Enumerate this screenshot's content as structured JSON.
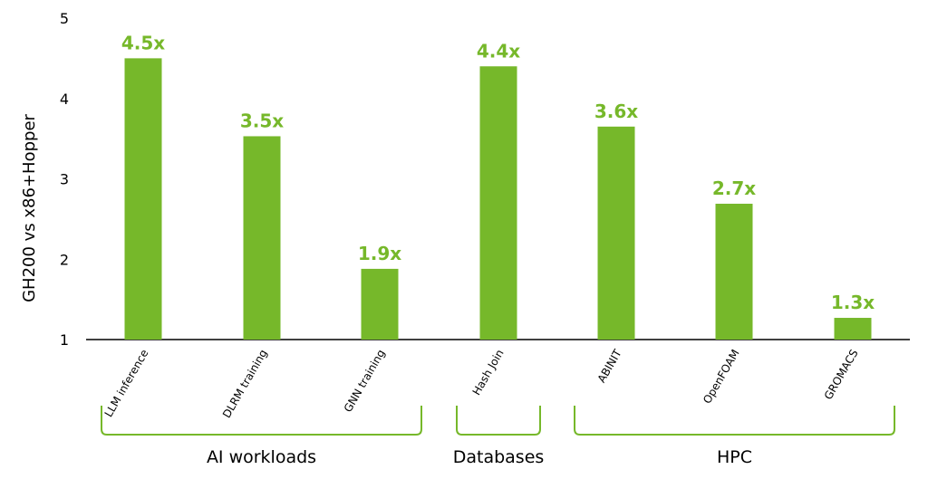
{
  "chart_data": {
    "type": "bar",
    "title": "",
    "xlabel": "",
    "ylabel": "GH200 vs x86+Hopper",
    "ylim": [
      1,
      5
    ],
    "yticks": [
      "1",
      "2",
      "3",
      "4",
      "5"
    ],
    "grid": false,
    "categories": [
      "LLM inference",
      "DLRM training",
      "GNN training",
      "Hash Join",
      "ABINIT",
      "OpenFOAM",
      "GROMACS"
    ],
    "values": [
      4.5,
      3.53,
      1.88,
      4.4,
      3.65,
      2.69,
      1.27
    ],
    "data_labels": [
      "4.5x",
      "3.5x",
      "1.9x",
      "4.4x",
      "3.6x",
      "2.7x",
      "1.3x"
    ],
    "groups": [
      {
        "label": "AI workloads",
        "start": 0,
        "end": 2
      },
      {
        "label": "Databases",
        "start": 3,
        "end": 3
      },
      {
        "label": "HPC",
        "start": 4,
        "end": 6
      }
    ],
    "colors": {
      "bar": "#76b82a",
      "label": "#76b82a",
      "bracket": "#76b82a",
      "axis": "#000000"
    }
  }
}
